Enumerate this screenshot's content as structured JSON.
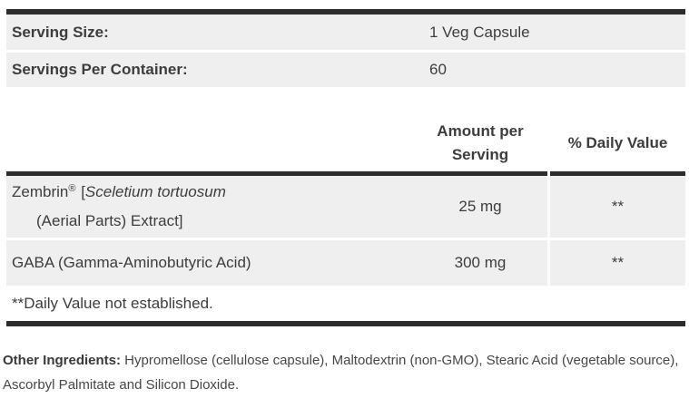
{
  "serving_info": {
    "rows": [
      {
        "label": "Serving Size:",
        "value": "1 Veg Capsule"
      },
      {
        "label": "Servings Per Container:",
        "value": "60"
      }
    ]
  },
  "columns": {
    "amount_header": "Amount per Serving",
    "dv_header": "% Daily Value"
  },
  "ingredients": [
    {
      "name_main": "Zembrin",
      "name_reg_mark": "®",
      "name_bracket": " [",
      "name_latin": "Sceletium tortuosum",
      "name_line2": "(Aerial Parts) Extract]",
      "amount": "25 mg",
      "daily_value": "**"
    },
    {
      "name": "GABA (Gamma-Aminobutyric Acid)",
      "amount": "300 mg",
      "daily_value": "**"
    }
  ],
  "footnote": "**Daily Value not established.",
  "other_ingredients": {
    "label": "Other Ingredients:",
    "text": " Hypromellose (cellulose capsule), Maltodextrin (non-GMO), Stearic Acid (vegetable source), Ascorbyl Palmitate and Silicon Dioxide."
  },
  "colors": {
    "bar": "#2d2d2d",
    "row_bg": "#efefef",
    "text": "#3d3d3d",
    "divider": "#fbfbfb"
  }
}
